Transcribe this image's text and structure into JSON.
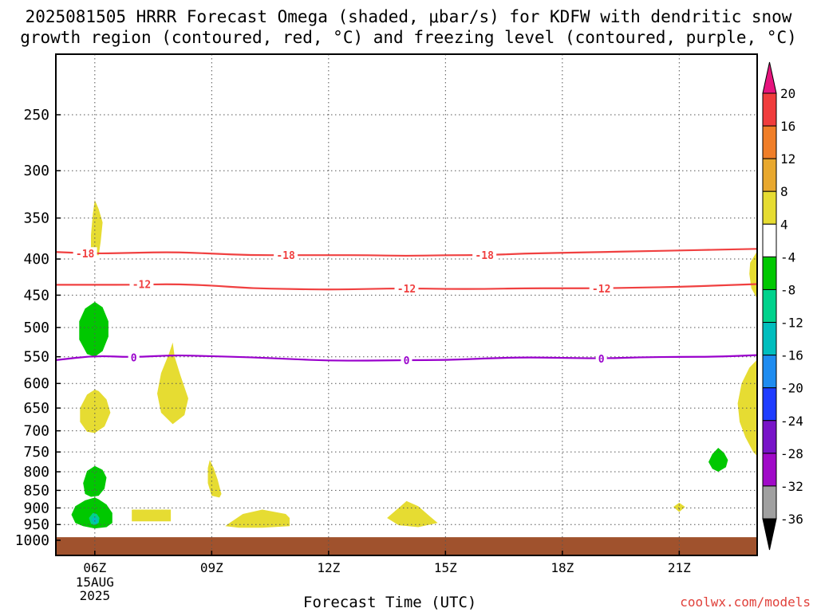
{
  "title_line1": "2025081505 HRRR Forecast Omega (shaded, μbar/s) for KDFW with dendritic snow",
  "title_line2": "growth region (contoured, red, °C) and freezing level (contoured, purple, °C)",
  "xlabel": "Forecast Time (UTC)",
  "credit": "coolwx.com/models",
  "chart_data": {
    "type": "contour",
    "title": "2025081505 HRRR Forecast Omega (shaded, μbar/s) for KDFW with dendritic snow growth region (contoured, red, °C) and freezing level (contoured, purple, °C)",
    "xlabel": "Forecast Time (UTC)",
    "ylabel": "",
    "x_range_hours_utc": [
      5,
      23
    ],
    "y_range_hPa": [
      1000,
      200
    ],
    "y_scale": "log (pressure)",
    "grid": true,
    "x_ticks": [
      "06Z",
      "09Z",
      "12Z",
      "15Z",
      "18Z",
      "21Z"
    ],
    "x_tick_hours": [
      6,
      9,
      12,
      15,
      18,
      21
    ],
    "x_date_label": [
      "15AUG",
      "2025"
    ],
    "y_ticks": [
      250,
      300,
      350,
      400,
      450,
      500,
      550,
      600,
      650,
      700,
      750,
      800,
      850,
      900,
      950,
      1000
    ],
    "colorbar": {
      "labels": [
        "20",
        "16",
        "12",
        "8",
        "4",
        "-4",
        "-8",
        "-12",
        "-16",
        "-20",
        "-24",
        "-28",
        "-32",
        "-36"
      ],
      "bins": [
        {
          "range": [
            16,
            20
          ],
          "color": "#f03c3c"
        },
        {
          "range": [
            12,
            16
          ],
          "color": "#f07e28"
        },
        {
          "range": [
            8,
            12
          ],
          "color": "#e8a82e"
        },
        {
          "range": [
            4,
            8
          ],
          "color": "#e6dc32"
        },
        {
          "range": [
            -4,
            4
          ],
          "color": "#ffffff"
        },
        {
          "range": [
            -8,
            -4
          ],
          "color": "#00c800"
        },
        {
          "range": [
            -12,
            -8
          ],
          "color": "#00d28c"
        },
        {
          "range": [
            -16,
            -12
          ],
          "color": "#00bebe"
        },
        {
          "range": [
            -20,
            -16
          ],
          "color": "#1e8cf0"
        },
        {
          "range": [
            -24,
            -20
          ],
          "color": "#1e3cff"
        },
        {
          "range": [
            -28,
            -24
          ],
          "color": "#7814c8"
        },
        {
          "range": [
            -32,
            -28
          ],
          "color": "#a00ac8"
        },
        {
          "range": [
            -36,
            -32
          ],
          "color": "#a0a0a0"
        }
      ],
      "top_arrow_color": "#e6147d",
      "bottom_arrow_color": "#000000"
    },
    "series": [
      {
        "name": "-18",
        "color": "#f04040",
        "x": [
          5,
          6,
          7,
          8,
          9,
          10,
          11,
          12,
          13,
          14,
          15,
          16,
          17,
          18,
          19,
          20,
          21,
          22,
          23
        ],
        "y": [
          391,
          393,
          392,
          391,
          393,
          395,
          395,
          395,
          395,
          396,
          395,
          395,
          393,
          392,
          391,
          390,
          389,
          388,
          387
        ]
      },
      {
        "name": "-12",
        "color": "#f04040",
        "x": [
          5,
          6,
          7,
          8,
          9,
          10,
          11,
          12,
          13,
          14,
          15,
          16,
          17,
          18,
          19,
          20,
          21,
          22,
          23
        ],
        "y": [
          435,
          435,
          435,
          434,
          436,
          440,
          441,
          442,
          441,
          440,
          441,
          441,
          440,
          440,
          440,
          439,
          438,
          436,
          434
        ]
      },
      {
        "name": "0",
        "color": "#9900cc",
        "x": [
          5,
          6,
          7,
          8,
          9,
          10,
          11,
          12,
          13,
          14,
          15,
          16,
          17,
          18,
          19,
          20,
          21,
          22,
          23
        ],
        "y": [
          556,
          548,
          551,
          547,
          549,
          551,
          554,
          557,
          557,
          556,
          556,
          553,
          551,
          552,
          553,
          551,
          550,
          550,
          547
        ]
      }
    ],
    "contour_labels": [
      {
        "text": "-18",
        "x": 5.75,
        "y": 393,
        "color": "#f04040"
      },
      {
        "text": "-18",
        "x": 10.9,
        "y": 395,
        "color": "#f04040"
      },
      {
        "text": "-18",
        "x": 16.0,
        "y": 395,
        "color": "#f04040"
      },
      {
        "text": "-12",
        "x": 7.2,
        "y": 434,
        "color": "#f04040"
      },
      {
        "text": "-12",
        "x": 14.0,
        "y": 440,
        "color": "#f04040"
      },
      {
        "text": "-12",
        "x": 19.0,
        "y": 440,
        "color": "#f04040"
      },
      {
        "text": "0",
        "x": 7.0,
        "y": 551,
        "color": "#9900cc"
      },
      {
        "text": "0",
        "x": 14.0,
        "y": 556,
        "color": "#9900cc"
      },
      {
        "text": "0",
        "x": 19.0,
        "y": 553,
        "color": "#9900cc"
      }
    ],
    "shaded_regions": [
      {
        "bin": "4 to 8",
        "color": "#e6dc32",
        "x": [
          6.0,
          5.95,
          5.9,
          5.9,
          6.1,
          6.15,
          6.2,
          6.1,
          6.0
        ],
        "y": [
          330,
          345,
          370,
          395,
          395,
          378,
          355,
          340,
          330
        ]
      },
      {
        "bin": "-8 to -4",
        "color": "#00c800",
        "x": [
          6.0,
          5.75,
          5.6,
          5.6,
          5.8,
          6.0,
          6.2,
          6.35,
          6.35,
          6.2,
          6.0
        ],
        "y": [
          460,
          470,
          490,
          520,
          545,
          550,
          540,
          515,
          490,
          468,
          460
        ]
      },
      {
        "bin": "4 to 8",
        "color": "#e6dc32",
        "x": [
          8.0,
          7.9,
          7.7,
          7.6,
          7.7,
          8.0,
          8.3,
          8.4,
          8.2,
          8.05,
          8.0
        ],
        "y": [
          525,
          545,
          580,
          620,
          660,
          685,
          665,
          630,
          585,
          550,
          525
        ]
      },
      {
        "bin": "4 to 8",
        "color": "#e6dc32",
        "x": [
          6.0,
          5.8,
          5.62,
          5.62,
          5.8,
          6.0,
          6.25,
          6.4,
          6.3,
          6.1,
          6.0
        ],
        "y": [
          612,
          622,
          650,
          680,
          702,
          705,
          690,
          660,
          632,
          615,
          612
        ]
      },
      {
        "bin": "-8 to -4",
        "color": "#00c800",
        "x": [
          6.0,
          5.8,
          5.7,
          5.75,
          5.9,
          6.1,
          6.25,
          6.3,
          6.2,
          6.0
        ],
        "y": [
          785,
          798,
          830,
          860,
          868,
          865,
          845,
          815,
          795,
          785
        ]
      },
      {
        "bin": "4 to 8",
        "color": "#e6dc32",
        "x": [
          8.95,
          8.9,
          8.9,
          9.0,
          9.2,
          9.25,
          9.15,
          9.05,
          8.95
        ],
        "y": [
          770,
          790,
          830,
          865,
          870,
          860,
          820,
          790,
          770
        ]
      },
      {
        "bin": "-8 to -4",
        "color": "#00c800",
        "x": [
          6.0,
          5.75,
          5.5,
          5.4,
          5.5,
          5.7,
          6.0,
          6.3,
          6.45,
          6.45,
          6.3,
          6.1,
          6.0
        ],
        "y": [
          870,
          878,
          895,
          920,
          945,
          955,
          962,
          958,
          945,
          915,
          890,
          875,
          870
        ]
      },
      {
        "bin": "-12 to -8",
        "color": "#00d28c",
        "x": [
          5.95,
          5.85,
          5.9,
          6.0,
          6.1,
          6.12,
          6.05,
          5.95
        ],
        "y": [
          915,
          930,
          948,
          952,
          945,
          930,
          918,
          915
        ]
      },
      {
        "bin": "-16 to -12",
        "color": "#00bebe",
        "x": [
          5.98,
          5.92,
          5.98,
          6.05,
          6.08,
          6.03,
          5.98
        ],
        "y": [
          925,
          935,
          945,
          948,
          938,
          928,
          925
        ]
      },
      {
        "bin": "4 to 8",
        "color": "#e6dc32",
        "x": [
          6.95,
          7.95,
          7.95,
          6.95
        ],
        "y": [
          905,
          905,
          940,
          940
        ]
      },
      {
        "bin": "4 to 8",
        "color": "#e6dc32",
        "x": [
          9.4,
          9.8,
          10.3,
          10.9,
          11.0,
          11.0,
          10.3,
          9.7,
          9.35,
          9.4
        ],
        "y": [
          950,
          918,
          905,
          918,
          930,
          955,
          960,
          960,
          955,
          950
        ]
      },
      {
        "bin": "4 to 8",
        "color": "#e6dc32",
        "x": [
          13.5,
          13.8,
          14.0,
          14.3,
          14.6,
          14.8,
          14.3,
          13.8,
          13.5
        ],
        "y": [
          930,
          900,
          880,
          895,
          925,
          945,
          958,
          952,
          930
        ]
      },
      {
        "bin": "4 to 8",
        "color": "#e6dc32",
        "x": [
          20.85,
          21.0,
          21.15,
          21.0,
          20.85
        ],
        "y": [
          897,
          885,
          897,
          912,
          897
        ]
      },
      {
        "bin": "-8 to -4",
        "color": "#00c800",
        "x": [
          22.0,
          21.85,
          21.75,
          21.85,
          22.0,
          22.2,
          22.25,
          22.15,
          22.0
        ],
        "y": [
          740,
          755,
          775,
          792,
          800,
          788,
          770,
          752,
          740
        ]
      },
      {
        "bin": "4 to 8",
        "color": "#e6dc32",
        "x": [
          23.0,
          22.82,
          22.8,
          22.85,
          23.0
        ],
        "y": [
          390,
          405,
          420,
          440,
          455
        ]
      },
      {
        "bin": "4 to 8",
        "color": "#e6dc32",
        "x": [
          23.0,
          22.8,
          22.6,
          22.5,
          22.55,
          22.7,
          22.9,
          23.0
        ],
        "y": [
          555,
          570,
          600,
          640,
          680,
          715,
          750,
          760
        ]
      }
    ],
    "terrain": {
      "label": "below ground",
      "color": "#a0522d",
      "pressure_hPa": 990
    }
  }
}
